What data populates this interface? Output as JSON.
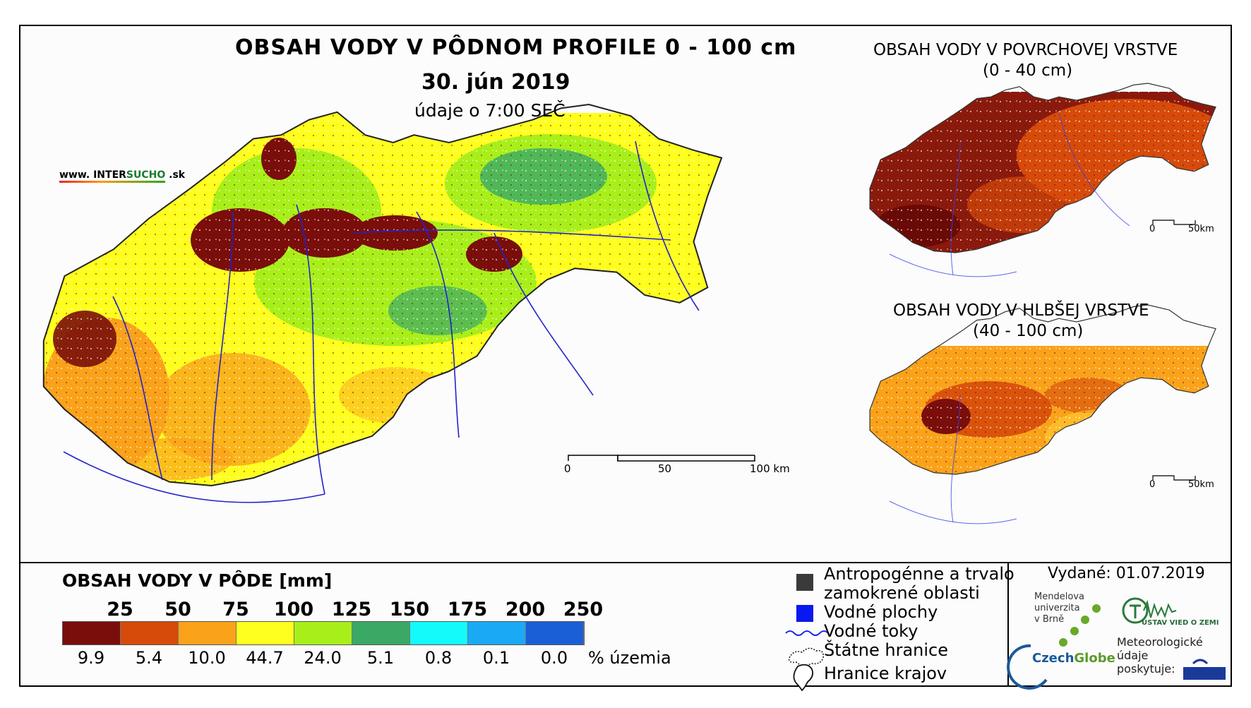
{
  "header": {
    "title": "OBSAH VODY V PÔDNOM PROFILE 0 - 100 cm",
    "date": "30. jún 2019",
    "time": "údaje o 7:00 SEČ"
  },
  "brand": {
    "prefix": "www. INTER",
    "highlight": "SUCHO",
    "suffix": " .sk"
  },
  "inset_surface": {
    "title": "OBSAH VODY V POVRCHOVEJ VRSTVE",
    "subtitle": "(0 - 40 cm)",
    "scale_start": "0",
    "scale_end": "50km"
  },
  "inset_deep": {
    "title": "OBSAH VODY V HLBŠEJ VRSTVE",
    "subtitle": "(40 - 100 cm)",
    "scale_start": "0",
    "scale_end": "50km"
  },
  "main_scale": {
    "start": "0",
    "mid": "50",
    "end": "100 km"
  },
  "legend": {
    "title": "OBSAH VODY V PÔDE [mm]",
    "thresholds": [
      "25",
      "50",
      "75",
      "100",
      "125",
      "150",
      "175",
      "200",
      "250"
    ],
    "percentages": [
      "9.9",
      "5.4",
      "10.0",
      "44.7",
      "24.0",
      "5.1",
      "0.8",
      "0.1",
      "0.0"
    ],
    "percent_suffix": "% územia",
    "colors": [
      "#7a0e0a",
      "#d64a0a",
      "#f9a21a",
      "#ffff1e",
      "#a8ef1a",
      "#3aa966",
      "#14fafa",
      "#1aaaf5",
      "#1a5fd6"
    ]
  },
  "symbol_legend": {
    "anthropogenic_line1": "Antropogénne a trvalo",
    "anthropogenic_line2": "zamokrené oblasti",
    "water_bodies": "Vodné plochy",
    "water_streams": "Vodné toky",
    "state_border": "Štátne hranice",
    "region_border": "Hranice krajov"
  },
  "issued": "Vydané: 01.07.2019",
  "logos": {
    "mendel": [
      "Mendelova",
      "univerzita",
      "v Brně"
    ],
    "czechglobe_a": "Czech",
    "czechglobe_b": "Globe",
    "ustav": "ÚSTAV VIED O ZEMI",
    "met": [
      "Meteorologické",
      "údaje",
      "poskytuje:"
    ]
  }
}
